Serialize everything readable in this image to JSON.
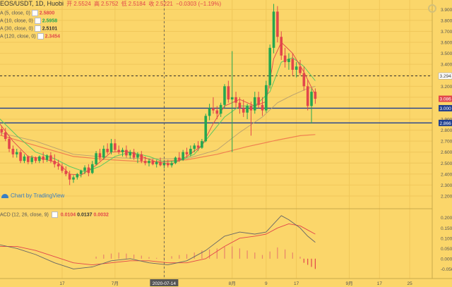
{
  "header": {
    "symbol": "EOS/USDT, 1D, Huobi",
    "open_label": "开",
    "open": "2.5524",
    "high_label": "高",
    "high": "2.5752",
    "low_label": "低",
    "low": "2.5184",
    "close_label": "收",
    "close": "2.5221",
    "change": "−0.0303 (−1.19%)"
  },
  "indicators": [
    {
      "label": "A (5, close, 0)",
      "value": "2.5800",
      "color": "#e2464b"
    },
    {
      "label": "A (10, close, 0)",
      "value": "2.5958",
      "color": "#25a750"
    },
    {
      "label": "A (30, close, 0)",
      "value": "2.5101",
      "color": "#333333"
    },
    {
      "label": "A (120, close, 0)",
      "value": "2.3454",
      "color": "#e2464b"
    }
  ],
  "watermark": "Chart by TradingView",
  "macd_label": "ACD (12, 26, close, 9)",
  "macd_values": [
    "0.0104",
    "0.0137",
    "0.0032"
  ],
  "colors": {
    "up": "#25a750",
    "down": "#e2464b",
    "background": "#fbd66a",
    "hline": "#1f3f8f",
    "ma30": "#f08050",
    "ma5": "#e2464b",
    "ma10": "#5cc860"
  },
  "chart_data": {
    "type": "candlestick",
    "title": "EOS/USDT, 1D, Huobi",
    "price_range": [
      2.11,
      3.96
    ],
    "price_ticks": [
      "3.900",
      "3.800",
      "3.700",
      "3.600",
      "3.500",
      "3.400",
      "3.300",
      "3.200",
      "3.100",
      "3.000",
      "2.900",
      "2.800",
      "2.700",
      "2.600",
      "2.500",
      "2.400",
      "2.300",
      "2.200"
    ],
    "price_badges": [
      {
        "value": "3.294",
        "color": "#ffffff",
        "text_color": "#333333"
      },
      {
        "value": "3.086",
        "color": "#e2464b",
        "text_color": "#ffffff"
      },
      {
        "value": "3.000",
        "color": "#1f3f8f",
        "text_color": "#ffffff"
      },
      {
        "value": "2.866",
        "color": "#1f3f8f",
        "text_color": "#ffffff"
      }
    ],
    "horizontal_lines": [
      {
        "value": 3.294,
        "style": "dashed",
        "color": "#333333"
      },
      {
        "value": 3.0,
        "style": "solid",
        "color": "#1f3f8f"
      },
      {
        "value": 2.866,
        "style": "solid",
        "color": "#1f3f8f"
      }
    ],
    "x_ticks": [
      "17",
      "7月",
      "2020-07-14",
      "8月",
      "9",
      "17",
      "9月",
      "17",
      "25"
    ],
    "x_tick_days": [
      17,
      31,
      44,
      62,
      71,
      79,
      93,
      101,
      109
    ],
    "crosshair_day": 44,
    "candles": [
      {
        "d": 0,
        "o": 2.85,
        "h": 2.89,
        "l": 2.8,
        "c": 2.81
      },
      {
        "d": 1,
        "o": 2.81,
        "h": 2.84,
        "l": 2.75,
        "c": 2.78
      },
      {
        "d": 2,
        "o": 2.78,
        "h": 2.82,
        "l": 2.7,
        "c": 2.72
      },
      {
        "d": 3,
        "o": 2.72,
        "h": 2.74,
        "l": 2.6,
        "c": 2.63
      },
      {
        "d": 4,
        "o": 2.63,
        "h": 2.66,
        "l": 2.55,
        "c": 2.58
      },
      {
        "d": 5,
        "o": 2.58,
        "h": 2.63,
        "l": 2.55,
        "c": 2.6
      },
      {
        "d": 6,
        "o": 2.6,
        "h": 2.62,
        "l": 2.5,
        "c": 2.52
      },
      {
        "d": 7,
        "o": 2.52,
        "h": 2.58,
        "l": 2.5,
        "c": 2.56
      },
      {
        "d": 8,
        "o": 2.56,
        "h": 2.57,
        "l": 2.49,
        "c": 2.51
      },
      {
        "d": 9,
        "o": 2.51,
        "h": 2.57,
        "l": 2.49,
        "c": 2.55
      },
      {
        "d": 10,
        "o": 2.55,
        "h": 2.56,
        "l": 2.5,
        "c": 2.52
      },
      {
        "d": 11,
        "o": 2.52,
        "h": 2.57,
        "l": 2.5,
        "c": 2.56
      },
      {
        "d": 12,
        "o": 2.56,
        "h": 2.6,
        "l": 2.5,
        "c": 2.53
      },
      {
        "d": 13,
        "o": 2.53,
        "h": 2.58,
        "l": 2.51,
        "c": 2.57
      },
      {
        "d": 14,
        "o": 2.57,
        "h": 2.6,
        "l": 2.5,
        "c": 2.52
      },
      {
        "d": 15,
        "o": 2.52,
        "h": 2.58,
        "l": 2.46,
        "c": 2.49
      },
      {
        "d": 16,
        "o": 2.49,
        "h": 2.53,
        "l": 2.44,
        "c": 2.47
      },
      {
        "d": 17,
        "o": 2.47,
        "h": 2.5,
        "l": 2.41,
        "c": 2.43
      },
      {
        "d": 18,
        "o": 2.43,
        "h": 2.47,
        "l": 2.38,
        "c": 2.4
      },
      {
        "d": 19,
        "o": 2.4,
        "h": 2.43,
        "l": 2.3,
        "c": 2.35
      },
      {
        "d": 20,
        "o": 2.35,
        "h": 2.39,
        "l": 2.32,
        "c": 2.37
      },
      {
        "d": 21,
        "o": 2.37,
        "h": 2.41,
        "l": 2.35,
        "c": 2.4
      },
      {
        "d": 22,
        "o": 2.4,
        "h": 2.44,
        "l": 2.37,
        "c": 2.43
      },
      {
        "d": 23,
        "o": 2.43,
        "h": 2.48,
        "l": 2.4,
        "c": 2.46
      },
      {
        "d": 24,
        "o": 2.46,
        "h": 2.49,
        "l": 2.38,
        "c": 2.41
      },
      {
        "d": 25,
        "o": 2.41,
        "h": 2.52,
        "l": 2.4,
        "c": 2.49
      },
      {
        "d": 26,
        "o": 2.49,
        "h": 2.61,
        "l": 2.48,
        "c": 2.59
      },
      {
        "d": 27,
        "o": 2.59,
        "h": 2.63,
        "l": 2.52,
        "c": 2.55
      },
      {
        "d": 28,
        "o": 2.55,
        "h": 2.66,
        "l": 2.53,
        "c": 2.63
      },
      {
        "d": 29,
        "o": 2.63,
        "h": 2.68,
        "l": 2.58,
        "c": 2.6
      },
      {
        "d": 30,
        "o": 2.6,
        "h": 2.72,
        "l": 2.58,
        "c": 2.68
      },
      {
        "d": 31,
        "o": 2.68,
        "h": 2.72,
        "l": 2.6,
        "c": 2.62
      },
      {
        "d": 32,
        "o": 2.62,
        "h": 2.66,
        "l": 2.58,
        "c": 2.6
      },
      {
        "d": 33,
        "o": 2.6,
        "h": 2.64,
        "l": 2.56,
        "c": 2.62
      },
      {
        "d": 34,
        "o": 2.62,
        "h": 2.66,
        "l": 2.55,
        "c": 2.57
      },
      {
        "d": 35,
        "o": 2.57,
        "h": 2.62,
        "l": 2.54,
        "c": 2.6
      },
      {
        "d": 36,
        "o": 2.6,
        "h": 2.63,
        "l": 2.53,
        "c": 2.55
      },
      {
        "d": 37,
        "o": 2.55,
        "h": 2.6,
        "l": 2.5,
        "c": 2.58
      },
      {
        "d": 38,
        "o": 2.58,
        "h": 2.61,
        "l": 2.5,
        "c": 2.52
      },
      {
        "d": 39,
        "o": 2.52,
        "h": 2.56,
        "l": 2.48,
        "c": 2.5
      },
      {
        "d": 40,
        "o": 2.5,
        "h": 2.54,
        "l": 2.47,
        "c": 2.52
      },
      {
        "d": 41,
        "o": 2.52,
        "h": 2.54,
        "l": 2.48,
        "c": 2.49
      },
      {
        "d": 42,
        "o": 2.49,
        "h": 2.53,
        "l": 2.46,
        "c": 2.51
      },
      {
        "d": 43,
        "o": 2.51,
        "h": 2.55,
        "l": 2.47,
        "c": 2.48
      },
      {
        "d": 44,
        "o": 2.48,
        "h": 2.53,
        "l": 2.45,
        "c": 2.5
      },
      {
        "d": 45,
        "o": 2.5,
        "h": 2.53,
        "l": 2.46,
        "c": 2.48
      },
      {
        "d": 46,
        "o": 2.48,
        "h": 2.52,
        "l": 2.46,
        "c": 2.5
      },
      {
        "d": 47,
        "o": 2.5,
        "h": 2.56,
        "l": 2.49,
        "c": 2.55
      },
      {
        "d": 48,
        "o": 2.55,
        "h": 2.6,
        "l": 2.51,
        "c": 2.53
      },
      {
        "d": 49,
        "o": 2.53,
        "h": 2.62,
        "l": 2.52,
        "c": 2.6
      },
      {
        "d": 50,
        "o": 2.6,
        "h": 2.64,
        "l": 2.55,
        "c": 2.58
      },
      {
        "d": 51,
        "o": 2.58,
        "h": 2.66,
        "l": 2.56,
        "c": 2.63
      },
      {
        "d": 52,
        "o": 2.63,
        "h": 2.68,
        "l": 2.6,
        "c": 2.66
      },
      {
        "d": 53,
        "o": 2.66,
        "h": 2.7,
        "l": 2.61,
        "c": 2.64
      },
      {
        "d": 54,
        "o": 2.64,
        "h": 2.72,
        "l": 2.63,
        "c": 2.7
      },
      {
        "d": 55,
        "o": 2.7,
        "h": 2.95,
        "l": 2.69,
        "c": 2.93
      },
      {
        "d": 56,
        "o": 2.93,
        "h": 3.04,
        "l": 2.89,
        "c": 3.0
      },
      {
        "d": 57,
        "o": 3.0,
        "h": 3.1,
        "l": 2.95,
        "c": 2.98
      },
      {
        "d": 58,
        "o": 2.98,
        "h": 3.02,
        "l": 2.9,
        "c": 2.95
      },
      {
        "d": 59,
        "o": 2.95,
        "h": 3.05,
        "l": 2.92,
        "c": 3.03
      },
      {
        "d": 60,
        "o": 3.03,
        "h": 3.22,
        "l": 3.0,
        "c": 3.2
      },
      {
        "d": 61,
        "o": 3.2,
        "h": 3.25,
        "l": 3.05,
        "c": 3.08
      },
      {
        "d": 62,
        "o": 3.08,
        "h": 3.52,
        "l": 2.6,
        "c": 3.1
      },
      {
        "d": 63,
        "o": 3.1,
        "h": 3.15,
        "l": 3.0,
        "c": 3.05
      },
      {
        "d": 64,
        "o": 3.05,
        "h": 3.1,
        "l": 2.95,
        "c": 3.0
      },
      {
        "d": 65,
        "o": 3.0,
        "h": 3.08,
        "l": 2.92,
        "c": 2.96
      },
      {
        "d": 66,
        "o": 2.96,
        "h": 3.04,
        "l": 2.9,
        "c": 3.02
      },
      {
        "d": 67,
        "o": 3.02,
        "h": 3.06,
        "l": 2.75,
        "c": 2.98
      },
      {
        "d": 68,
        "o": 2.98,
        "h": 3.15,
        "l": 2.95,
        "c": 3.1
      },
      {
        "d": 69,
        "o": 3.1,
        "h": 3.15,
        "l": 3.0,
        "c": 3.03
      },
      {
        "d": 70,
        "o": 3.03,
        "h": 3.1,
        "l": 2.93,
        "c": 2.98
      },
      {
        "d": 71,
        "o": 2.98,
        "h": 3.25,
        "l": 2.96,
        "c": 3.21
      },
      {
        "d": 72,
        "o": 3.21,
        "h": 3.58,
        "l": 3.18,
        "c": 3.55
      },
      {
        "d": 73,
        "o": 3.55,
        "h": 3.95,
        "l": 3.5,
        "c": 3.88
      },
      {
        "d": 74,
        "o": 3.88,
        "h": 3.93,
        "l": 3.6,
        "c": 3.65
      },
      {
        "d": 75,
        "o": 3.65,
        "h": 3.7,
        "l": 3.44,
        "c": 3.48
      },
      {
        "d": 76,
        "o": 3.48,
        "h": 3.55,
        "l": 3.37,
        "c": 3.42
      },
      {
        "d": 77,
        "o": 3.42,
        "h": 3.5,
        "l": 3.35,
        "c": 3.45
      },
      {
        "d": 78,
        "o": 3.45,
        "h": 3.5,
        "l": 3.3,
        "c": 3.35
      },
      {
        "d": 79,
        "o": 3.35,
        "h": 3.42,
        "l": 3.28,
        "c": 3.38
      },
      {
        "d": 80,
        "o": 3.38,
        "h": 3.44,
        "l": 3.3,
        "c": 3.32
      },
      {
        "d": 81,
        "o": 3.32,
        "h": 3.38,
        "l": 3.16,
        "c": 3.2
      },
      {
        "d": 82,
        "o": 3.2,
        "h": 3.26,
        "l": 2.98,
        "c": 3.02
      },
      {
        "d": 83,
        "o": 3.02,
        "h": 3.18,
        "l": 2.86,
        "c": 3.15
      },
      {
        "d": 84,
        "o": 3.15,
        "h": 3.18,
        "l": 3.04,
        "c": 3.086
      }
    ],
    "ma5": [
      [
        0,
        2.88
      ],
      [
        4,
        2.7
      ],
      [
        8,
        2.56
      ],
      [
        12,
        2.54
      ],
      [
        16,
        2.5
      ],
      [
        19,
        2.4
      ],
      [
        22,
        2.39
      ],
      [
        26,
        2.48
      ],
      [
        30,
        2.6
      ],
      [
        34,
        2.61
      ],
      [
        38,
        2.56
      ],
      [
        42,
        2.51
      ],
      [
        46,
        2.49
      ],
      [
        50,
        2.56
      ],
      [
        54,
        2.66
      ],
      [
        57,
        2.86
      ],
      [
        60,
        3.02
      ],
      [
        64,
        3.08
      ],
      [
        68,
        3.02
      ],
      [
        71,
        3.06
      ],
      [
        73,
        3.45
      ],
      [
        75,
        3.6
      ],
      [
        78,
        3.5
      ],
      [
        81,
        3.33
      ],
      [
        84,
        3.12
      ]
    ],
    "ma10": [
      [
        0,
        2.92
      ],
      [
        5,
        2.75
      ],
      [
        10,
        2.6
      ],
      [
        15,
        2.54
      ],
      [
        19,
        2.47
      ],
      [
        23,
        2.42
      ],
      [
        27,
        2.47
      ],
      [
        31,
        2.56
      ],
      [
        35,
        2.6
      ],
      [
        40,
        2.56
      ],
      [
        44,
        2.51
      ],
      [
        48,
        2.52
      ],
      [
        52,
        2.58
      ],
      [
        56,
        2.75
      ],
      [
        60,
        2.92
      ],
      [
        64,
        3.02
      ],
      [
        68,
        3.02
      ],
      [
        72,
        3.15
      ],
      [
        75,
        3.42
      ],
      [
        78,
        3.46
      ],
      [
        81,
        3.38
      ],
      [
        84,
        3.25
      ]
    ],
    "ma30": [
      [
        0,
        2.78
      ],
      [
        10,
        2.7
      ],
      [
        20,
        2.58
      ],
      [
        30,
        2.55
      ],
      [
        40,
        2.54
      ],
      [
        50,
        2.54
      ],
      [
        58,
        2.62
      ],
      [
        64,
        2.78
      ],
      [
        70,
        2.92
      ],
      [
        74,
        3.05
      ],
      [
        78,
        3.12
      ],
      [
        82,
        3.18
      ],
      [
        84,
        3.2
      ]
    ],
    "ma120": [
      [
        0,
        2.76
      ],
      [
        10,
        2.66
      ],
      [
        20,
        2.56
      ],
      [
        30,
        2.53
      ],
      [
        40,
        2.51
      ],
      [
        50,
        2.53
      ],
      [
        58,
        2.58
      ],
      [
        66,
        2.65
      ],
      [
        74,
        2.71
      ],
      [
        80,
        2.75
      ],
      [
        84,
        2.76
      ]
    ],
    "macd_range": [
      -0.09,
      0.23
    ],
    "macd_ticks": [
      "0.200",
      "0.150",
      "0.100",
      "0.050",
      "0.000",
      "-0.050"
    ],
    "macd_line": [
      [
        0,
        0.07
      ],
      [
        5,
        0.05
      ],
      [
        10,
        0.02
      ],
      [
        15,
        -0.02
      ],
      [
        20,
        -0.05
      ],
      [
        25,
        -0.04
      ],
      [
        30,
        -0.01
      ],
      [
        35,
        0.0
      ],
      [
        40,
        -0.02
      ],
      [
        45,
        -0.03
      ],
      [
        50,
        -0.01
      ],
      [
        55,
        0.04
      ],
      [
        60,
        0.11
      ],
      [
        64,
        0.13
      ],
      [
        68,
        0.12
      ],
      [
        71,
        0.13
      ],
      [
        73,
        0.17
      ],
      [
        75,
        0.21
      ],
      [
        77,
        0.19
      ],
      [
        80,
        0.15
      ],
      [
        82,
        0.11
      ],
      [
        84,
        0.08
      ]
    ],
    "signal_line": [
      [
        0,
        0.06
      ],
      [
        5,
        0.06
      ],
      [
        10,
        0.04
      ],
      [
        15,
        0.01
      ],
      [
        20,
        -0.02
      ],
      [
        25,
        -0.03
      ],
      [
        30,
        -0.02
      ],
      [
        35,
        -0.01
      ],
      [
        40,
        -0.01
      ],
      [
        45,
        -0.02
      ],
      [
        50,
        -0.02
      ],
      [
        55,
        0.0
      ],
      [
        60,
        0.06
      ],
      [
        64,
        0.1
      ],
      [
        68,
        0.11
      ],
      [
        71,
        0.12
      ],
      [
        74,
        0.15
      ],
      [
        77,
        0.17
      ],
      [
        80,
        0.16
      ],
      [
        82,
        0.14
      ],
      [
        84,
        0.12
      ]
    ],
    "histogram": [
      [
        26,
        0.01
      ],
      [
        28,
        0.02
      ],
      [
        30,
        0.025
      ],
      [
        32,
        0.03
      ],
      [
        34,
        0.025
      ],
      [
        36,
        0.02
      ],
      [
        38,
        0.015
      ],
      [
        40,
        0.008
      ],
      [
        42,
        0.004
      ],
      [
        44,
        0.006
      ],
      [
        46,
        0.012
      ],
      [
        48,
        0.018
      ],
      [
        50,
        0.022
      ],
      [
        52,
        0.03
      ],
      [
        54,
        0.04
      ],
      [
        56,
        0.045
      ],
      [
        58,
        0.05
      ],
      [
        60,
        0.058
      ],
      [
        62,
        0.06
      ],
      [
        64,
        0.05
      ],
      [
        66,
        0.04
      ],
      [
        68,
        0.03
      ],
      [
        70,
        0.018
      ],
      [
        72,
        0.035
      ],
      [
        74,
        0.055
      ],
      [
        76,
        0.045
      ],
      [
        78,
        0.03
      ],
      [
        80,
        0.01
      ],
      [
        81,
        -0.02
      ],
      [
        82,
        -0.03
      ],
      [
        83,
        -0.04
      ],
      [
        84,
        -0.05
      ]
    ]
  }
}
